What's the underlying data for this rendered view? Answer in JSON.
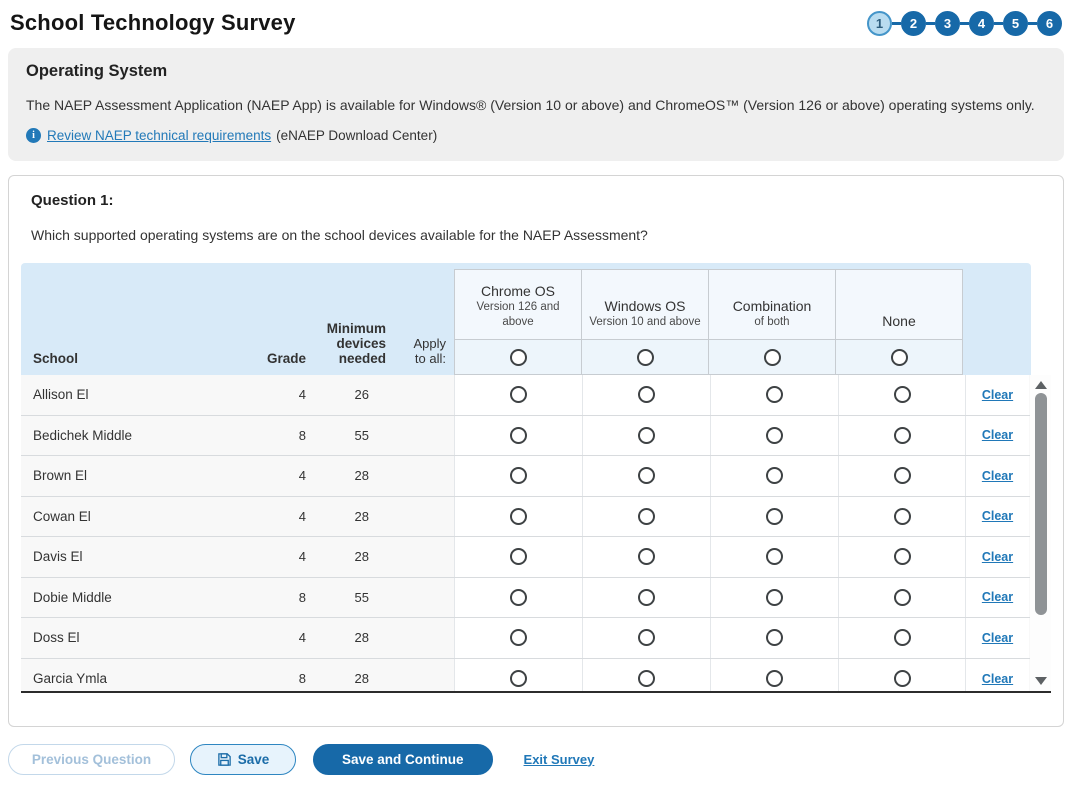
{
  "page": {
    "title": "School Technology Survey"
  },
  "stepper": {
    "steps": [
      "1",
      "2",
      "3",
      "4",
      "5",
      "6"
    ],
    "active": "1"
  },
  "info_box": {
    "heading": "Operating System",
    "body": "The NAEP Assessment Application (NAEP App) is available for Windows® (Version 10 or above) and ChromeOS™ (Version 126 or above) operating systems only.",
    "info_icon": "info-circle-icon",
    "link": "Review NAEP technical requirements",
    "link_suffix": "(eNAEP Download Center)"
  },
  "question": {
    "label": "Question 1:",
    "text": "Which supported operating systems are on the school devices available for the NAEP Assessment?"
  },
  "table": {
    "columns": {
      "school": "School",
      "grade": "Grade",
      "devices": "Minimum devices needed",
      "apply": "Apply to all:"
    },
    "os_options": [
      {
        "name": "Chrome OS",
        "sub": "Version 126 and above"
      },
      {
        "name": "Windows OS",
        "sub": "Version 10 and above"
      },
      {
        "name": "Combination",
        "sub": "of both"
      },
      {
        "name": "None",
        "sub": ""
      }
    ],
    "clear_label": "Clear",
    "rows": [
      {
        "school": "Allison El",
        "grade": "4",
        "devices": "26"
      },
      {
        "school": "Bedichek Middle",
        "grade": "8",
        "devices": "55"
      },
      {
        "school": "Brown El",
        "grade": "4",
        "devices": "28"
      },
      {
        "school": "Cowan El",
        "grade": "4",
        "devices": "28"
      },
      {
        "school": "Davis El",
        "grade": "4",
        "devices": "28"
      },
      {
        "school": "Dobie Middle",
        "grade": "8",
        "devices": "55"
      },
      {
        "school": "Doss El",
        "grade": "4",
        "devices": "28"
      },
      {
        "school": "Garcia Ymla",
        "grade": "8",
        "devices": "28"
      }
    ]
  },
  "footer": {
    "previous": "Previous Question",
    "save": "Save",
    "save_continue": "Save and Continue",
    "exit": "Exit Survey"
  },
  "colors": {
    "accent": "#1769a8",
    "link": "#2078b8",
    "header_band": "#d8eaf8",
    "active_step_fill": "#b9dcf0"
  }
}
